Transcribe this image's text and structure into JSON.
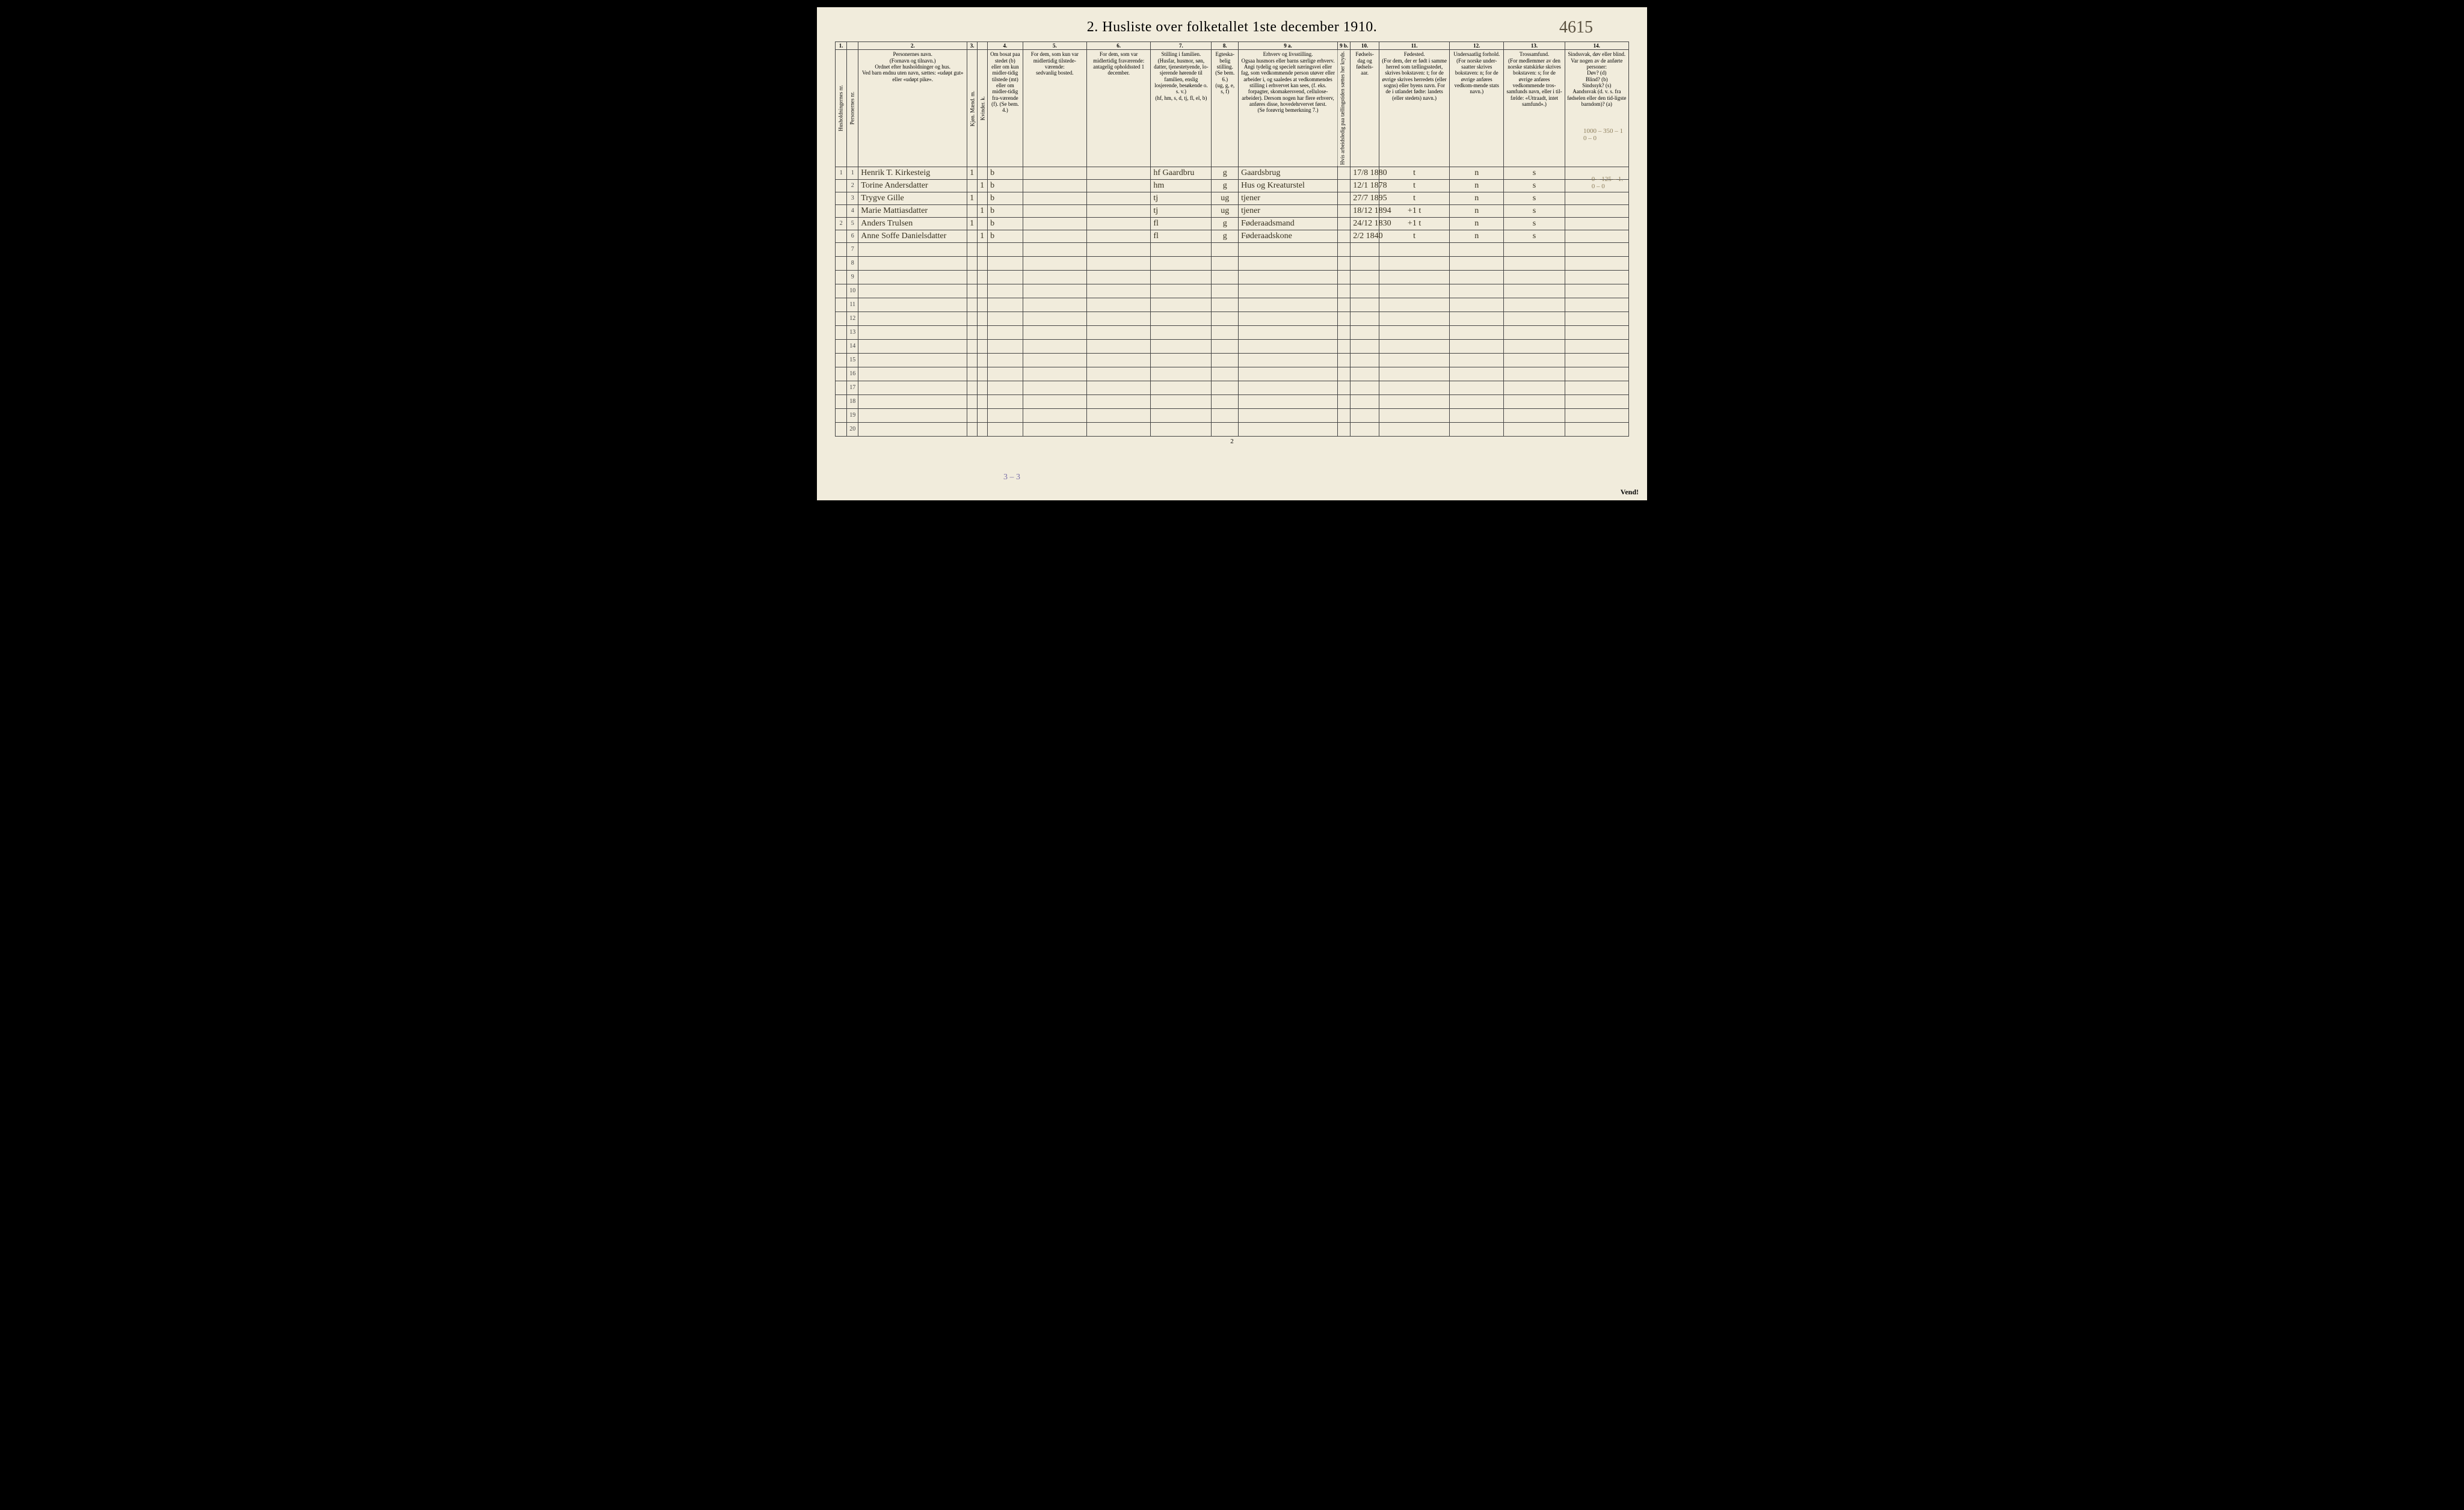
{
  "page_title": "2.  Husliste over folketallet 1ste december 1910.",
  "hand_corner_number": "4615",
  "footer_page": "2",
  "vend": "Vend!",
  "hand_footnote": "3 – 3",
  "margin_note_1": "1000 – 350 – 1\n0  –  0",
  "margin_note_2": "0 – 125 – 1.\n0 –  0",
  "col_numbers": [
    "1.",
    "",
    "2.",
    "3.",
    "",
    "4.",
    "5.",
    "6.",
    "7.",
    "8.",
    "9 a.",
    "9 b.",
    "10.",
    "11.",
    "12.",
    "13.",
    "14."
  ],
  "headers": {
    "c1": "Husholdningernes nr.",
    "c2": "Personernes nr.",
    "c3": "Personernes navn.\n(Fornavn og tilnavn.)\nOrdnet efter husholdninger og hus.\nVed barn endnu uten navn, sættes: «udøpt gut» eller «udøpt pike».",
    "c4": "Kjøn.\nMænd.\nm.",
    "c5": "Kvinder.\nk.",
    "c6": "Om bosat paa stedet (b) eller om kun midler-tidig tilstede (mt) eller om midler-tidig fra-værende (f). (Se bem. 4.)",
    "c7": "For dem, som kun var midlertidig tilstede-værende:\nsedvanlig bosted.",
    "c8": "For dem, som var midlertidig fraværende:\nantagelig opholdssted 1 december.",
    "c9": "Stilling i familien.\n(Husfar, husmor, søn, datter, tjenestetyende, lo-sjerende hørende til familien, enslig losjerende, besøkende o. s. v.)\n(hf, hm, s, d, tj, fl, el, b)",
    "c10": "Egteska-belig stilling.\n(Se bem. 6.)\n(ug, g, e, s, f)",
    "c11": "Erhverv og livsstilling.\nOgsaa husmors eller barns særlige erhverv. Angi tydelig og specielt næringsvei eller fag, som vedkommende person utøver eller arbeider i, og saaledes at vedkommendes stilling i erhvervet kan sees, (f. eks. forpagter, skomakersvend, cellulose-arbeider). Dersom nogen har flere erhverv, anføres disse, hovedehrvervet først.\n(Se forøvrig bemerkning 7.)",
    "c12": "Hvis arbeidsledig paa tællingstiden sættes her kryds.",
    "c13": "Fødsels-dag og fødsels-aar.",
    "c14": "Fødested.\n(For dem, der er født i samme herred som tællingsstedet, skrives bokstaven: t; for de øvrige skrives herredets (eller sogns) eller byens navn. For de i utlandet fødte: landets (eller stedets) navn.)",
    "c15": "Undersaatlig forhold.\n(For norske under-saatter skrives bokstaven: n; for de øvrige anføres vedkom-mende stats navn.)",
    "c16": "Trossamfund.\n(For medlemmer av den norske statskirke skrives bokstaven: s; for de øvrige anføres vedkommende tros-samfunds navn, eller i til-fælde: «Uttraadt, intet samfund».)",
    "c17": "Sindssvak, døv eller blind.\nVar nogen av de anførte personer:\nDøv?      (d)\nBlind?    (b)\nSindssyk? (s)\nAandssvak (d. v. s. fra fødselen eller den tid-ligste barndom)? (a)"
  },
  "rows": [
    {
      "hh": "1",
      "pn": "1",
      "name": "Henrik T. Kirkesteig",
      "m": "1",
      "k": "",
      "b": "b",
      "c7": "",
      "c8": "",
      "fam": "hf  Gaardbru",
      "eg": "g",
      "erhv": "Gaardsbrug",
      "x": "",
      "dob": "17/8 1880",
      "fod": "t",
      "und": "n",
      "tro": "s",
      "sind": ""
    },
    {
      "hh": "",
      "pn": "2",
      "name": "Torine Andersdatter",
      "m": "",
      "k": "1",
      "b": "b",
      "c7": "",
      "c8": "",
      "fam": "hm",
      "eg": "g",
      "erhv": "Hus og Kreaturstel",
      "x": "",
      "dob": "12/1 1878",
      "fod": "t",
      "und": "n",
      "tro": "s",
      "sind": ""
    },
    {
      "hh": "",
      "pn": "3",
      "name": "Trygve Gille",
      "m": "1",
      "k": "",
      "b": "b",
      "c7": "",
      "c8": "",
      "fam": "tj",
      "eg": "ug",
      "erhv": "tjener",
      "x": "",
      "dob": "27/7 1895",
      "fod": "t",
      "und": "n",
      "tro": "s",
      "sind": ""
    },
    {
      "hh": "",
      "pn": "4",
      "name": "Marie Mattiasdatter",
      "m": "",
      "k": "1",
      "b": "b",
      "c7": "",
      "c8": "",
      "fam": "tj",
      "eg": "ug",
      "erhv": "tjener",
      "x": "",
      "dob": "18/12 1894",
      "fod": "+1  t",
      "und": "n",
      "tro": "s",
      "sind": ""
    },
    {
      "hh": "2",
      "pn": "5",
      "name": "Anders Trulsen",
      "m": "1",
      "k": "",
      "b": "b",
      "c7": "",
      "c8": "",
      "fam": "fl",
      "eg": "g",
      "erhv": "Føderaadsmand",
      "x": "",
      "dob": "24/12 1830",
      "fod": "+1  t",
      "und": "n",
      "tro": "s",
      "sind": ""
    },
    {
      "hh": "",
      "pn": "6",
      "name": "Anne Soffe Danielsdatter",
      "m": "",
      "k": "1",
      "b": "b",
      "c7": "",
      "c8": "",
      "fam": "fl",
      "eg": "g",
      "erhv": "Føderaadskone",
      "x": "",
      "dob": "2/2 1840",
      "fod": "t",
      "und": "n",
      "tro": "s",
      "sind": ""
    }
  ],
  "blank_rows_from": 7,
  "blank_rows_to": 20
}
